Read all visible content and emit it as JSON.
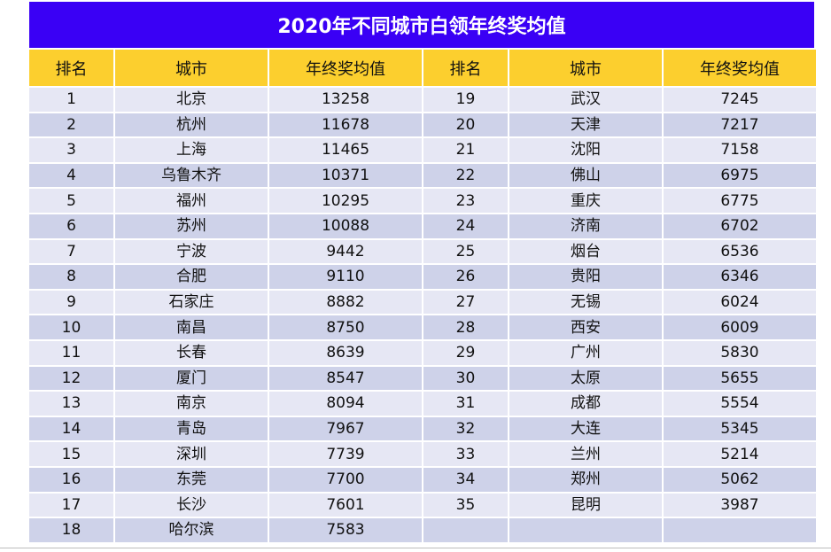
{
  "title": "2020年不同城市白领年终奖均值",
  "headers": [
    "排名",
    "城市",
    "年终奖均值",
    "排名",
    "城市",
    "年终奖均值"
  ],
  "left": [
    {
      "rank": "1",
      "city": "北京",
      "value": "13258"
    },
    {
      "rank": "2",
      "city": "杭州",
      "value": "11678"
    },
    {
      "rank": "3",
      "city": "上海",
      "value": "11465"
    },
    {
      "rank": "4",
      "city": "乌鲁木齐",
      "value": "10371"
    },
    {
      "rank": "5",
      "city": "福州",
      "value": "10295"
    },
    {
      "rank": "6",
      "city": "苏州",
      "value": "10088"
    },
    {
      "rank": "7",
      "city": "宁波",
      "value": "9442"
    },
    {
      "rank": "8",
      "city": "合肥",
      "value": "9110"
    },
    {
      "rank": "9",
      "city": "石家庄",
      "value": "8882"
    },
    {
      "rank": "10",
      "city": "南昌",
      "value": "8750"
    },
    {
      "rank": "11",
      "city": "长春",
      "value": "8639"
    },
    {
      "rank": "12",
      "city": "厦门",
      "value": "8547"
    },
    {
      "rank": "13",
      "city": "南京",
      "value": "8094"
    },
    {
      "rank": "14",
      "city": "青岛",
      "value": "7967"
    },
    {
      "rank": "15",
      "city": "深圳",
      "value": "7739"
    },
    {
      "rank": "16",
      "city": "东莞",
      "value": "7700"
    },
    {
      "rank": "17",
      "city": "长沙",
      "value": "7601"
    },
    {
      "rank": "18",
      "city": "哈尔滨",
      "value": "7583"
    }
  ],
  "right": [
    {
      "rank": "19",
      "city": "武汉",
      "value": "7245"
    },
    {
      "rank": "20",
      "city": "天津",
      "value": "7217"
    },
    {
      "rank": "21",
      "city": "沈阳",
      "value": "7158"
    },
    {
      "rank": "22",
      "city": "佛山",
      "value": "6975"
    },
    {
      "rank": "23",
      "city": "重庆",
      "value": "6775"
    },
    {
      "rank": "24",
      "city": "济南",
      "value": "6702"
    },
    {
      "rank": "25",
      "city": "烟台",
      "value": "6536"
    },
    {
      "rank": "26",
      "city": "贵阳",
      "value": "6346"
    },
    {
      "rank": "27",
      "city": "无锡",
      "value": "6024"
    },
    {
      "rank": "28",
      "city": "西安",
      "value": "6009"
    },
    {
      "rank": "29",
      "city": "广州",
      "value": "5830"
    },
    {
      "rank": "30",
      "city": "太原",
      "value": "5655"
    },
    {
      "rank": "31",
      "city": "成都",
      "value": "5554"
    },
    {
      "rank": "32",
      "city": "大连",
      "value": "5345"
    },
    {
      "rank": "33",
      "city": "兰州",
      "value": "5214"
    },
    {
      "rank": "34",
      "city": "郑州",
      "value": "5062"
    },
    {
      "rank": "35",
      "city": "昆明",
      "value": "3987"
    },
    {
      "rank": "",
      "city": "",
      "value": ""
    }
  ],
  "colors": {
    "title_bg": "#3a00f5",
    "header_bg": "#fccf2e",
    "row_light": "#e6e7f4",
    "row_dark": "#ced2e9"
  }
}
